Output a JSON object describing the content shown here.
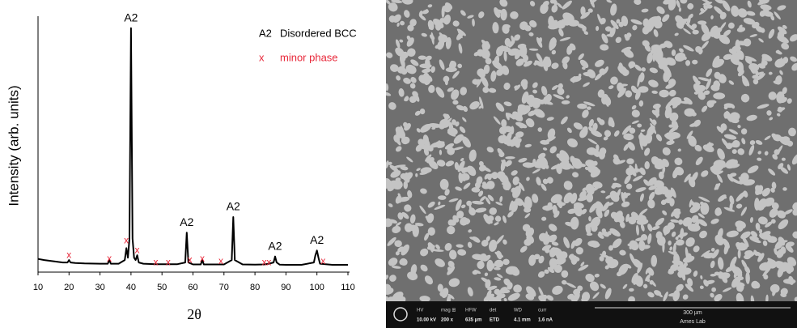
{
  "chart_data": {
    "type": "line",
    "x_label": "2θ",
    "y_label": "Intensity (arb. units)",
    "x": [
      10,
      12,
      15,
      18,
      19.5,
      20,
      20.5,
      22,
      25,
      30,
      32.5,
      33,
      33.5,
      36,
      38,
      38.5,
      39,
      39.5,
      40,
      40.5,
      41,
      41.5,
      42,
      42.5,
      44,
      48,
      52,
      55,
      57.5,
      58,
      58.5,
      60,
      62.5,
      63,
      63.5,
      66,
      70,
      72.5,
      73,
      73.5,
      76,
      80,
      83,
      84.5,
      86,
      86.5,
      87,
      88,
      90,
      95,
      99,
      99.5,
      100,
      100.5,
      101,
      105,
      110
    ],
    "values": [
      3.5,
      3,
      2.5,
      2,
      2,
      3,
      2,
      1.8,
      1.6,
      1.5,
      1.5,
      3,
      1.5,
      1.5,
      3,
      8,
      4,
      12,
      100,
      12,
      4,
      3,
      5,
      2,
      1.5,
      1.3,
      1.3,
      1.3,
      2,
      14.5,
      2,
      1.2,
      1.2,
      3,
      1.2,
      1.2,
      1.2,
      3,
      21,
      3,
      1.2,
      1.1,
      1.2,
      1.5,
      2,
      4.5,
      2,
      1.1,
      1,
      1,
      2,
      5,
      7,
      4,
      1.5,
      1,
      1
    ],
    "color": "#000000",
    "xlim": [
      10,
      110
    ],
    "xticks": [
      10,
      20,
      30,
      40,
      50,
      60,
      70,
      80,
      90,
      100,
      110
    ],
    "ylim": [
      0,
      105
    ],
    "peak_labels": [
      {
        "label": "A2",
        "x": 40,
        "y": 100
      },
      {
        "label": "A2",
        "x": 58,
        "y": 14.5
      },
      {
        "label": "A2",
        "x": 73,
        "y": 21
      },
      {
        "label": "A2",
        "x": 86.5,
        "y": 4.5
      },
      {
        "label": "A2",
        "x": 100,
        "y": 7
      }
    ],
    "minor_phase_markers": {
      "label": "x",
      "color": "#e8283a",
      "x": [
        20,
        33,
        38.5,
        42,
        48,
        52,
        59,
        63,
        69,
        83,
        84.5,
        102
      ],
      "y": [
        5,
        3.5,
        11,
        7,
        2,
        2,
        3,
        3.5,
        2.5,
        2,
        2,
        2.5
      ]
    },
    "legend": [
      {
        "symbol": "A2",
        "text": "Disordered BCC",
        "color": "#000000"
      },
      {
        "symbol": "x",
        "text": "minor phase",
        "color": "#e8283a"
      }
    ]
  },
  "sem_image": {
    "info_bar": [
      {
        "label": "HV",
        "value": "10.00 kV"
      },
      {
        "label": "mag ⊞",
        "value": "200 x"
      },
      {
        "label": "HFW",
        "value": "635 µm"
      },
      {
        "label": "det",
        "value": "ETD"
      },
      {
        "label": "WD",
        "value": "4.1 mm"
      },
      {
        "label": "curr",
        "value": "1.6 nA"
      }
    ],
    "scale_bar": "300 µm",
    "lab": "Ames Lab"
  }
}
